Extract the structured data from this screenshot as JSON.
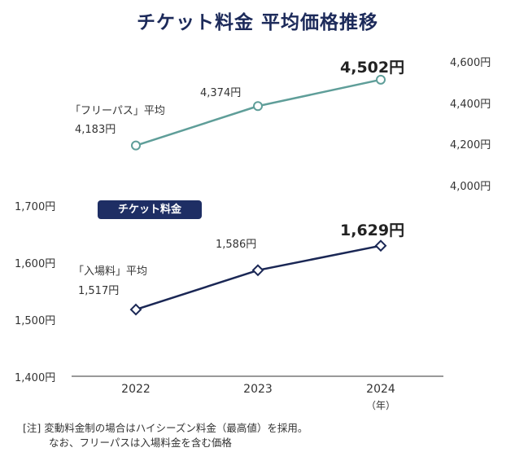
{
  "title": "チケット料金 平均価格推移",
  "badge": "チケット料金",
  "year_unit": "（年）",
  "notes": {
    "line1": "[注]  変動料金制の場合はハイシーズン料金（最高値）を採用。",
    "line2": "なお、フリーパスは入場料金を含む価格"
  },
  "colors": {
    "free_pass": "#5f9e99",
    "admission": "#1a2755",
    "title": "#1c2a5a",
    "badge": "#1e2e64"
  },
  "chart_data": [
    {
      "type": "line",
      "x": [
        "2022",
        "2023",
        "2024"
      ],
      "series": [
        {
          "name": "「フリーパス」平均",
          "values": [
            4183,
            4374,
            4502
          ],
          "labels": [
            "4,183円",
            "4,374円",
            "4,502円"
          ]
        }
      ],
      "ylim": [
        4000,
        4600
      ],
      "yticks": [
        "4,000円",
        "4,200円",
        "4,400円",
        "4,600円"
      ],
      "yaxis_side": "right",
      "grid": false
    },
    {
      "type": "line",
      "x": [
        "2022",
        "2023",
        "2024"
      ],
      "series": [
        {
          "name": "「入場料」平均",
          "values": [
            1517,
            1586,
            1629
          ],
          "labels": [
            "1,517円",
            "1,586円",
            "1,629円"
          ]
        }
      ],
      "ylim": [
        1400,
        1700
      ],
      "yticks": [
        "1,400円",
        "1,500円",
        "1,600円",
        "1,700円"
      ],
      "yaxis_side": "left",
      "grid": false
    }
  ]
}
